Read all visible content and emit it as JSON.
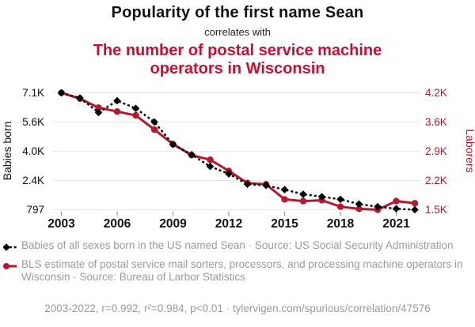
{
  "header": {
    "title": "Popularity of the first name Sean",
    "connector": "correlates with",
    "subtitle": "The number of postal service machine operators in Wisconsin"
  },
  "colors": {
    "accent_red": "#c61032",
    "line_red": "#b4192d",
    "line_black": "#000000",
    "grid": "#e9e9e9",
    "tick_mark": "#999999",
    "muted_text": "#9b9b9b",
    "axis_text": "#111111"
  },
  "chart_data": {
    "type": "line",
    "x": [
      2003,
      2004,
      2005,
      2006,
      2007,
      2008,
      2009,
      2010,
      2011,
      2012,
      2013,
      2014,
      2015,
      2016,
      2017,
      2018,
      2019,
      2020,
      2021,
      2022
    ],
    "x_ticks": [
      "2003",
      "2006",
      "2009",
      "2012",
      "2015",
      "2018",
      "2021"
    ],
    "left_axis": {
      "label": "Babies born",
      "min": 797,
      "max": 7100,
      "tick_labels_top_to_bottom": [
        "7.1K",
        "5.6K",
        "4.0K",
        "2.4K",
        "797"
      ]
    },
    "right_axis": {
      "label": "Laborers",
      "min": 1470,
      "max": 4185,
      "tick_labels_top_to_bottom": [
        "4.2K",
        "3.6K",
        "2.9K",
        "2.2K",
        "1.5K"
      ]
    },
    "grid": true,
    "legend_position": "below",
    "series": [
      {
        "name": "Babies of all sexes born in the US named Sean",
        "axis": "left",
        "line_style": "dashed",
        "marker": "diamond",
        "color": "#000000",
        "values": [
          7100,
          6820,
          6040,
          6670,
          6260,
          5530,
          4320,
          3760,
          3130,
          2730,
          2170,
          2110,
          1880,
          1630,
          1500,
          1360,
          1100,
          960,
          850,
          797
        ]
      },
      {
        "name": "BLS estimate of postal service mail sorters, processors, and processing machine operators in Wisconsin",
        "axis": "right",
        "line_style": "solid",
        "marker": "circle",
        "color": "#b4192d",
        "values": [
          4185,
          4050,
          3840,
          3750,
          3660,
          3330,
          2990,
          2740,
          2630,
          2370,
          2090,
          2060,
          1710,
          1670,
          1690,
          1540,
          1490,
          1470,
          1670,
          1620
        ]
      }
    ]
  },
  "legend": [
    {
      "label": "Babies of all sexes born in the US named Sean · Source: US Social Security Administration"
    },
    {
      "label": "BLS estimate of postal service mail sorters, processors, and processing machine operators in Wisconsin · Source: Bureau of Larbor Statistics"
    }
  ],
  "footer": {
    "text": "2003-2022, r=0.992, r²=0.984, p<0.01 · tylervigen.com/spurious/correlation/47576"
  }
}
